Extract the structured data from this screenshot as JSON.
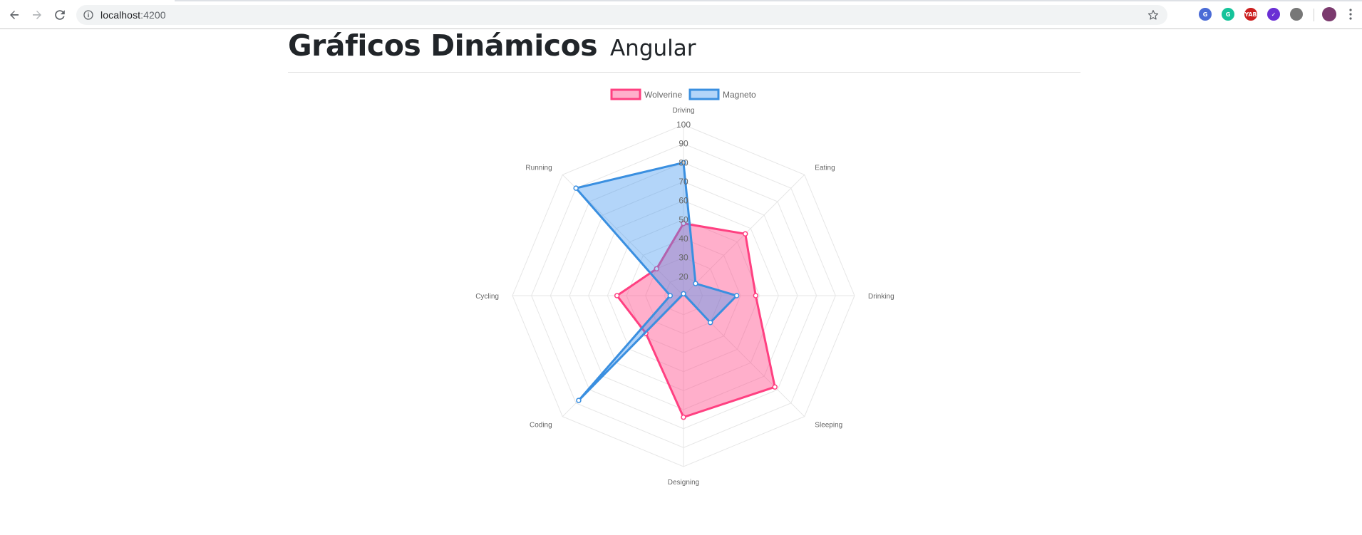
{
  "browser": {
    "url_host": "localhost",
    "url_port": ":4200",
    "extensions": [
      {
        "name": "translate-extension-icon",
        "color": "#4a6bd6",
        "glyph": "G"
      },
      {
        "name": "grammarly-extension-icon",
        "color": "#15c39a",
        "glyph": "G"
      },
      {
        "name": "yab-extension-icon",
        "color": "#cc1f1f",
        "glyph": "YAB"
      },
      {
        "name": "check-extension-icon",
        "color": "#6a2fd4",
        "glyph": "✓"
      },
      {
        "name": "cycling-extension-icon",
        "color": "#777777",
        "glyph": ""
      }
    ]
  },
  "page": {
    "title": "Gráficos Dinámicos",
    "subtitle": "Angular"
  },
  "chart_data": {
    "type": "radar",
    "categories": [
      "Driving",
      "Eating",
      "Drinking",
      "Sleeping",
      "Designing",
      "Coding",
      "Cycling",
      "Running"
    ],
    "series": [
      {
        "name": "Wolverine",
        "values": [
          48,
          56,
          48,
          78,
          74,
          38,
          45,
          30
        ],
        "color": "#ff4081",
        "fill": "rgba(255,77,140,0.45)"
      },
      {
        "name": "Magneto",
        "values": [
          80,
          19,
          38,
          30,
          9,
          88,
          17,
          90
        ],
        "color": "#3a8fe0",
        "fill": "rgba(64,150,240,0.4)"
      }
    ],
    "r_min": 10,
    "r_max": 100,
    "ticks": [
      20,
      30,
      40,
      50,
      60,
      70,
      80,
      90,
      100
    ],
    "legend_position": "top",
    "grid": true
  }
}
